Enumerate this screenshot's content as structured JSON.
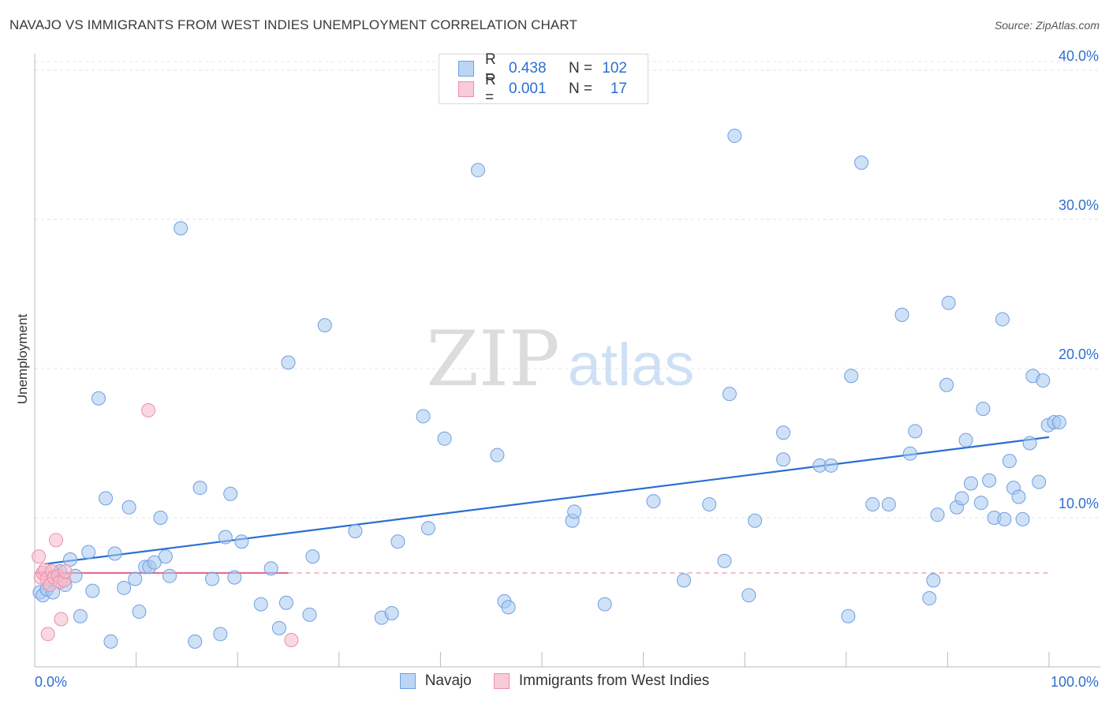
{
  "title": "NAVAJO VS IMMIGRANTS FROM WEST INDIES UNEMPLOYMENT CORRELATION CHART",
  "source": "Source: ZipAtlas.com",
  "watermark": {
    "zip": "ZIP",
    "atlas": "atlas"
  },
  "legend": {
    "rows": [
      {
        "r_label": "R =",
        "r_value": "0.438",
        "n_label": "N =",
        "n_value": "102"
      },
      {
        "r_label": "R =",
        "r_value": "0.001",
        "n_label": "N =",
        "n_value": "17"
      }
    ]
  },
  "chart_data": {
    "type": "scatter",
    "title": "NAVAJO VS IMMIGRANTS FROM WEST INDIES UNEMPLOYMENT CORRELATION CHART",
    "ylabel": "Unemployment",
    "xlabel": "",
    "xlim": [
      0,
      100
    ],
    "ylim": [
      0,
      41
    ],
    "y_ticks": [
      10,
      20,
      30,
      40
    ],
    "y_tick_labels": [
      "10.0%",
      "20.0%",
      "30.0%",
      "40.0%"
    ],
    "x_tick_labels": [
      "0.0%",
      "100.0%"
    ],
    "grid": true,
    "legend_position": "top-center",
    "colors": {
      "navajo": "#a7c8f0",
      "navajo_line": "#2a6fd1",
      "west_indies": "#f5b8c9",
      "west_indies_line": "#e46b92"
    },
    "series": [
      {
        "name": "Navajo",
        "points": [
          [
            0.5,
            5.0
          ],
          [
            0.8,
            4.8
          ],
          [
            1.2,
            5.2
          ],
          [
            1.8,
            5.0
          ],
          [
            2.5,
            6.4
          ],
          [
            3.0,
            5.5
          ],
          [
            3.5,
            7.2
          ],
          [
            4.0,
            6.1
          ],
          [
            4.5,
            3.4
          ],
          [
            5.3,
            7.7
          ],
          [
            5.7,
            5.1
          ],
          [
            6.3,
            18.0
          ],
          [
            7.0,
            11.3
          ],
          [
            7.5,
            1.7
          ],
          [
            7.9,
            7.6
          ],
          [
            8.8,
            5.3
          ],
          [
            9.3,
            10.7
          ],
          [
            9.9,
            5.9
          ],
          [
            10.3,
            3.7
          ],
          [
            10.9,
            6.7
          ],
          [
            11.3,
            6.7
          ],
          [
            11.8,
            7.0
          ],
          [
            12.4,
            10.0
          ],
          [
            12.9,
            7.4
          ],
          [
            13.3,
            6.1
          ],
          [
            14.4,
            29.4
          ],
          [
            15.8,
            1.7
          ],
          [
            16.3,
            12.0
          ],
          [
            17.5,
            5.9
          ],
          [
            18.3,
            2.2
          ],
          [
            18.8,
            8.7
          ],
          [
            19.3,
            11.6
          ],
          [
            19.7,
            6.0
          ],
          [
            20.4,
            8.4
          ],
          [
            22.3,
            4.2
          ],
          [
            23.3,
            6.6
          ],
          [
            24.1,
            2.6
          ],
          [
            24.8,
            4.3
          ],
          [
            25.0,
            20.4
          ],
          [
            27.1,
            3.5
          ],
          [
            27.4,
            7.4
          ],
          [
            28.6,
            22.9
          ],
          [
            31.6,
            9.1
          ],
          [
            34.2,
            3.3
          ],
          [
            35.2,
            3.6
          ],
          [
            35.8,
            8.4
          ],
          [
            38.3,
            16.8
          ],
          [
            38.8,
            9.3
          ],
          [
            40.4,
            15.3
          ],
          [
            43.7,
            33.3
          ],
          [
            45.6,
            14.2
          ],
          [
            46.3,
            4.4
          ],
          [
            46.7,
            4.0
          ],
          [
            53.0,
            9.8
          ],
          [
            53.2,
            10.4
          ],
          [
            56.2,
            4.2
          ],
          [
            61.0,
            11.1
          ],
          [
            64.0,
            5.8
          ],
          [
            66.5,
            10.9
          ],
          [
            68.0,
            7.1
          ],
          [
            68.5,
            18.3
          ],
          [
            69.0,
            35.6
          ],
          [
            70.4,
            4.8
          ],
          [
            71.0,
            9.8
          ],
          [
            73.8,
            13.9
          ],
          [
            73.8,
            15.7
          ],
          [
            77.4,
            13.5
          ],
          [
            78.5,
            13.5
          ],
          [
            80.2,
            3.4
          ],
          [
            80.5,
            19.5
          ],
          [
            81.5,
            33.8
          ],
          [
            82.6,
            10.9
          ],
          [
            84.2,
            10.9
          ],
          [
            85.5,
            23.6
          ],
          [
            86.3,
            14.3
          ],
          [
            86.8,
            15.8
          ],
          [
            88.2,
            4.6
          ],
          [
            88.6,
            5.8
          ],
          [
            89.0,
            10.2
          ],
          [
            89.9,
            18.9
          ],
          [
            90.1,
            24.4
          ],
          [
            90.9,
            10.7
          ],
          [
            91.4,
            11.3
          ],
          [
            91.8,
            15.2
          ],
          [
            92.3,
            12.3
          ],
          [
            93.3,
            11.0
          ],
          [
            93.5,
            17.3
          ],
          [
            94.1,
            12.5
          ],
          [
            94.6,
            10.0
          ],
          [
            95.4,
            23.3
          ],
          [
            95.6,
            9.9
          ],
          [
            96.1,
            13.8
          ],
          [
            96.5,
            12.0
          ],
          [
            97.0,
            11.4
          ],
          [
            97.4,
            9.9
          ],
          [
            98.1,
            15.0
          ],
          [
            98.4,
            19.5
          ],
          [
            99.0,
            12.4
          ],
          [
            99.4,
            19.2
          ],
          [
            99.9,
            16.2
          ],
          [
            100.5,
            16.4
          ],
          [
            101.0,
            16.4
          ]
        ],
        "trend": {
          "x": [
            1,
            100
          ],
          "y": [
            6.9,
            15.4
          ]
        }
      },
      {
        "name": "Immigrants from West Indies",
        "points": [
          [
            0.4,
            7.4
          ],
          [
            0.6,
            6.0
          ],
          [
            0.8,
            6.3
          ],
          [
            1.0,
            6.5
          ],
          [
            1.2,
            5.9
          ],
          [
            1.3,
            2.2
          ],
          [
            1.5,
            5.5
          ],
          [
            1.7,
            6.4
          ],
          [
            1.9,
            6.0
          ],
          [
            2.1,
            8.5
          ],
          [
            2.3,
            6.1
          ],
          [
            2.5,
            5.7
          ],
          [
            2.6,
            3.2
          ],
          [
            2.9,
            5.8
          ],
          [
            3.0,
            6.4
          ],
          [
            11.2,
            17.2
          ],
          [
            25.3,
            1.8
          ]
        ],
        "trend": {
          "x": [
            0,
            25
          ],
          "y": [
            6.3,
            6.3
          ]
        },
        "trend_extension": {
          "x": [
            25,
            100
          ],
          "y": [
            6.3,
            6.3
          ]
        }
      }
    ]
  }
}
